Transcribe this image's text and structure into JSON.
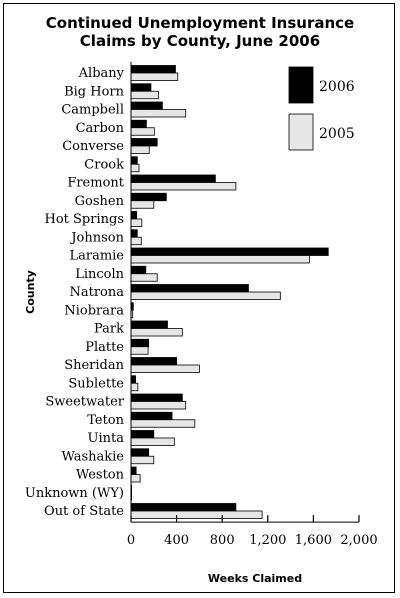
{
  "chart_data": {
    "type": "bar",
    "orientation": "horizontal",
    "title_lines": [
      "Continued Unemployment Insurance",
      "Claims by County, June 2006"
    ],
    "xlabel": "Weeks Claimed",
    "ylabel": "County",
    "xlim": [
      0,
      2000
    ],
    "xticks": [
      0,
      400,
      800,
      1200,
      1600,
      2000
    ],
    "xtick_labels": [
      "0",
      "400",
      "800",
      "1,200",
      "1,600",
      "2,000"
    ],
    "categories": [
      "Albany",
      "Big Horn",
      "Campbell",
      "Carbon",
      "Converse",
      "Crook",
      "Fremont",
      "Goshen",
      "Hot Springs",
      "Johnson",
      "Laramie",
      "Lincoln",
      "Natrona",
      "Niobrara",
      "Park",
      "Platte",
      "Sheridan",
      "Sublette",
      "Sweetwater",
      "Teton",
      "Uinta",
      "Washakie",
      "Weston",
      "Unknown (WY)",
      "Out of State"
    ],
    "series": [
      {
        "name": "2006",
        "color": "#000000",
        "values": [
          390,
          175,
          275,
          135,
          230,
          55,
          740,
          310,
          50,
          55,
          1730,
          130,
          1030,
          20,
          320,
          155,
          400,
          40,
          450,
          360,
          200,
          155,
          45,
          5,
          920
        ]
      },
      {
        "name": "2005",
        "color": "#e6e6e6",
        "values": [
          410,
          240,
          480,
          205,
          160,
          70,
          920,
          200,
          95,
          90,
          1565,
          230,
          1310,
          15,
          450,
          150,
          600,
          60,
          480,
          560,
          380,
          200,
          80,
          5,
          1150
        ]
      }
    ],
    "legend_position": "top-right",
    "grid": false
  }
}
